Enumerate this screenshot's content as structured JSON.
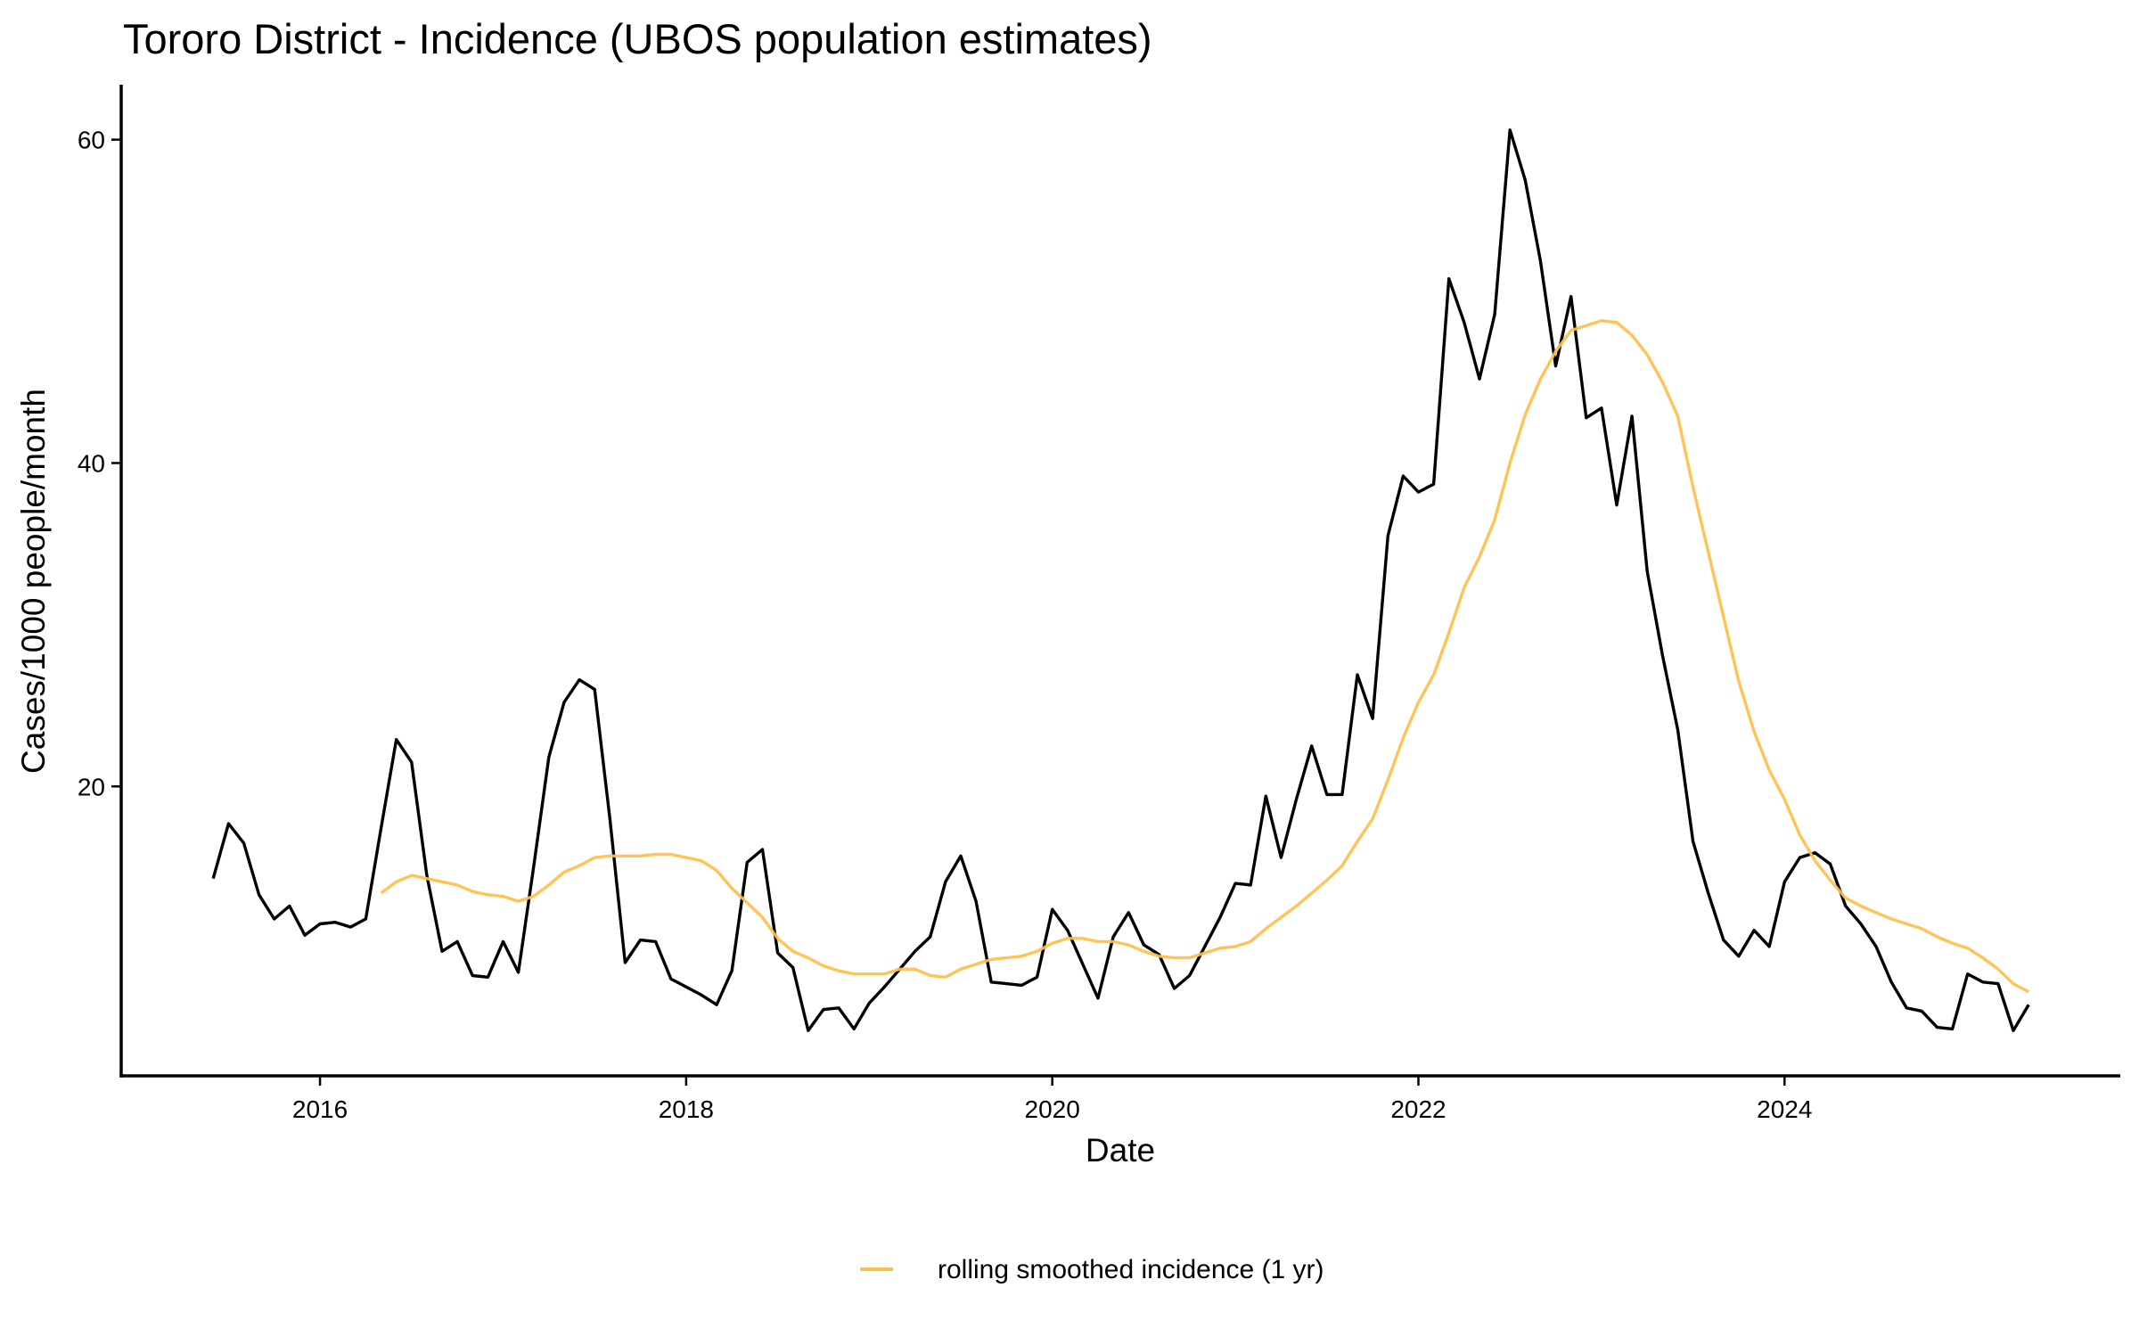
{
  "chart_data": {
    "type": "line",
    "title": "Tororo District - Incidence (UBOS population estimates)",
    "xlabel": "Date",
    "ylabel": "Cases/1000 people/month",
    "xlim": [
      2014.914,
      2025.834
    ],
    "ylim": [
      2.1,
      63.4
    ],
    "x_ticks": [
      2016,
      2018,
      2020,
      2022,
      2024
    ],
    "x_tick_labels": [
      "2016",
      "2018",
      "2020",
      "2022",
      "2024"
    ],
    "y_ticks": [
      20,
      40,
      60
    ],
    "y_tick_labels": [
      "20",
      "40",
      "60"
    ],
    "grid": false,
    "legend_position": "bottom",
    "series": [
      {
        "name": "incidence",
        "in_legend": false,
        "color": "#000000",
        "start": "2015-06",
        "frequency": "monthly",
        "values": [
          14.3,
          17.7,
          16.5,
          13.3,
          11.8,
          12.6,
          10.8,
          11.5,
          11.6,
          11.3,
          11.8,
          17.4,
          22.9,
          21.5,
          14.5,
          9.8,
          10.4,
          8.3,
          8.2,
          10.4,
          8.5,
          15.0,
          21.8,
          25.2,
          26.6,
          26.0,
          18.0,
          9.1,
          10.5,
          10.4,
          8.1,
          7.6,
          7.1,
          6.5,
          8.6,
          15.3,
          16.1,
          9.7,
          8.8,
          4.9,
          6.2,
          6.3,
          5.0,
          6.6,
          7.6,
          8.7,
          9.8,
          10.7,
          14.1,
          15.7,
          12.9,
          7.9,
          7.8,
          7.7,
          8.2,
          12.4,
          11.1,
          9.0,
          6.9,
          10.7,
          12.2,
          10.2,
          9.6,
          7.5,
          8.3,
          10.1,
          11.9,
          14.0,
          13.9,
          19.4,
          15.6,
          19.2,
          22.5,
          19.5,
          19.5,
          26.9,
          24.2,
          35.5,
          39.2,
          38.2,
          38.7,
          51.4,
          48.7,
          45.2,
          49.2,
          60.6,
          57.5,
          52.5,
          46.0,
          50.3,
          42.8,
          43.4,
          37.4,
          42.9,
          33.3,
          28.1,
          23.5,
          16.6,
          13.4,
          10.5,
          9.5,
          11.1,
          10.1,
          14.1,
          15.6,
          15.9,
          15.2,
          12.6,
          11.5,
          10.1,
          7.9,
          6.3,
          6.1,
          5.1,
          5.0,
          8.4,
          7.9,
          7.8,
          4.9,
          6.5
        ]
      },
      {
        "name": "rolling smoothed incidence (1 yr)",
        "in_legend": true,
        "color": "#FFBE4A",
        "start": "2016-05",
        "frequency": "monthly",
        "values": [
          13.4,
          14.1,
          14.5,
          14.3,
          14.1,
          13.9,
          13.5,
          13.3,
          13.2,
          12.9,
          13.2,
          13.9,
          14.7,
          15.1,
          15.6,
          15.7,
          15.7,
          15.7,
          15.8,
          15.8,
          15.6,
          15.4,
          14.8,
          13.7,
          12.8,
          11.9,
          10.6,
          9.8,
          9.4,
          8.9,
          8.6,
          8.4,
          8.4,
          8.4,
          8.7,
          8.7,
          8.3,
          8.2,
          8.7,
          9.0,
          9.3,
          9.4,
          9.5,
          9.8,
          10.3,
          10.6,
          10.6,
          10.4,
          10.4,
          10.2,
          9.8,
          9.5,
          9.4,
          9.4,
          9.7,
          10.0,
          10.1,
          10.4,
          11.2,
          11.9,
          12.6,
          13.4,
          14.2,
          15.1,
          16.6,
          18.0,
          20.4,
          23.0,
          25.2,
          26.9,
          29.5,
          32.3,
          34.2,
          36.5,
          40.0,
          43.0,
          45.2,
          46.9,
          48.2,
          48.5,
          48.8,
          48.7,
          47.9,
          46.7,
          45.0,
          42.9,
          38.5,
          34.5,
          30.5,
          26.5,
          23.4,
          21.0,
          19.2,
          17.0,
          15.4,
          14.2,
          13.1,
          12.6,
          12.2,
          11.8,
          11.5,
          11.2,
          10.7,
          10.3,
          10.0,
          9.4,
          8.7,
          7.8,
          7.3
        ]
      }
    ],
    "legend": {
      "entries": [
        {
          "label": "rolling smoothed incidence (1 yr)",
          "color": "#FFBE4A"
        }
      ]
    }
  }
}
